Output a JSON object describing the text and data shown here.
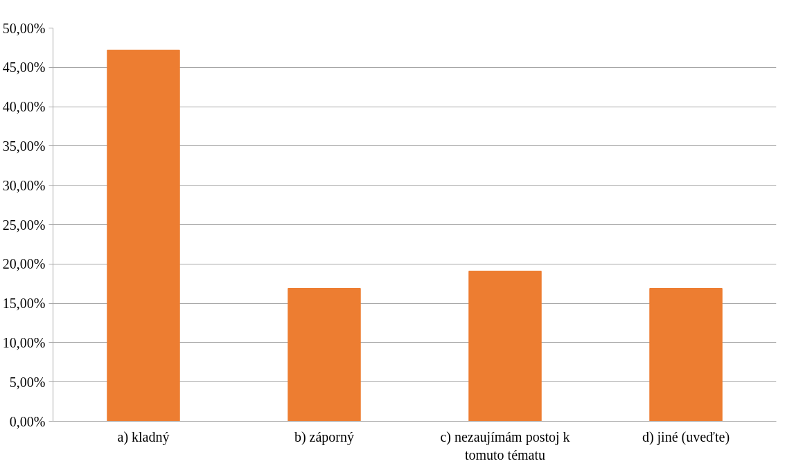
{
  "chart_data": {
    "type": "bar",
    "categories": [
      "a) kladný",
      "b) záporný",
      "c) nezaujímám postoj k tomuto tématu",
      "d) jiné (uveďte)"
    ],
    "values": [
      47.2,
      16.9,
      19.1,
      16.9
    ],
    "color": "#ed7d31",
    "ylim": [
      0,
      50
    ],
    "yticks": [
      {
        "value": 0,
        "label": "0,00%"
      },
      {
        "value": 5,
        "label": "5,00%"
      },
      {
        "value": 10,
        "label": "10,00%"
      },
      {
        "value": 15,
        "label": "15,00%"
      },
      {
        "value": 20,
        "label": "20,00%"
      },
      {
        "value": 25,
        "label": "25,00%"
      },
      {
        "value": 30,
        "label": "30,00%"
      },
      {
        "value": 35,
        "label": "35,00%"
      },
      {
        "value": 40,
        "label": "40,00%"
      },
      {
        "value": 45,
        "label": "45,00%"
      },
      {
        "value": 50,
        "label": "50,00%"
      }
    ],
    "grid": "y"
  }
}
